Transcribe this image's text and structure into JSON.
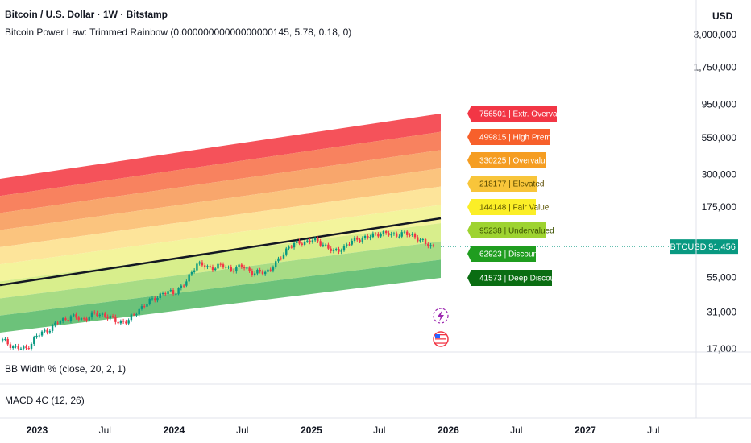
{
  "header": {
    "symbol_title": "Bitcoin / U.S. Dollar · 1W · Bitstamp",
    "indicator_title": "Bitcoin Power Law: Trimmed Rainbow (0.00000000000000000145, 5.78, 0.18, 0)",
    "currency": "USD"
  },
  "panes": {
    "bbw_label": "BB Width % (close, 20, 2, 1)",
    "macd_label": "MACD 4C (12, 26)"
  },
  "price_tag": {
    "symbol": "BTCUSD",
    "value": "91,456",
    "color": "#089981"
  },
  "icons": [
    "lightning-icon",
    "us-flag-icon"
  ],
  "chart_data": {
    "type": "line",
    "y_scale": "log",
    "y_ticks": [
      "3,000,000",
      "1,750,000",
      "950,000",
      "550,000",
      "300,000",
      "175,000",
      "55,000",
      "31,000",
      "17,000"
    ],
    "x_ticks": [
      {
        "label": "2023",
        "bold": true
      },
      {
        "label": "Jul",
        "bold": false
      },
      {
        "label": "2024",
        "bold": true
      },
      {
        "label": "Jul",
        "bold": false
      },
      {
        "label": "2025",
        "bold": true
      },
      {
        "label": "Jul",
        "bold": false
      },
      {
        "label": "2026",
        "bold": true
      },
      {
        "label": "Jul",
        "bold": false
      },
      {
        "label": "2027",
        "bold": true
      },
      {
        "label": "Jul",
        "bold": false
      }
    ],
    "bands": [
      {
        "value": "756501",
        "name": "Extr. Overvalued",
        "color": "#f23645",
        "text": "#ffffff"
      },
      {
        "value": "499815",
        "name": "High Premium",
        "color": "#f7602b",
        "text": "#ffffff"
      },
      {
        "value": "330225",
        "name": "Overvalued",
        "color": "#f59d22",
        "text": "#ffffff"
      },
      {
        "value": "218177",
        "name": "Elevated",
        "color": "#f8c53a",
        "text": "#5a4a00"
      },
      {
        "value": "144148",
        "name": "Fair Value",
        "color": "#fbee27",
        "text": "#5a5200"
      },
      {
        "value": "95238",
        "name": "Undervalued",
        "color": "#9ed330",
        "text": "#3c5200"
      },
      {
        "value": "62923",
        "name": "Discount",
        "color": "#1f9d1f",
        "text": "#ffffff"
      },
      {
        "value": "41573",
        "name": "Deep Discount",
        "color": "#0a6d12",
        "text": "#ffffff"
      }
    ],
    "band_fill_colors": [
      "#f5525a",
      "#f8825f",
      "#f8a66c",
      "#fbc47e",
      "#fde49a",
      "#f3f49c",
      "#d8ee8c",
      "#a8dc85",
      "#6cc27a"
    ],
    "fair_line_color": "#131722",
    "series": [
      {
        "x": [
          "2022-10-01",
          "2022-11-01",
          "2022-12-01",
          "2023-01-01",
          "2023-02-01",
          "2023-03-01",
          "2023-04-01",
          "2023-05-01",
          "2023-06-01",
          "2023-07-01",
          "2023-08-01",
          "2023-09-01",
          "2023-10-01",
          "2023-11-01",
          "2023-12-01",
          "2024-01-01",
          "2024-02-01",
          "2024-03-01",
          "2024-04-01",
          "2024-05-01",
          "2024-06-01",
          "2024-07-01",
          "2024-08-01",
          "2024-09-01",
          "2024-10-01",
          "2024-11-01",
          "2024-12-01",
          "2025-01-01",
          "2025-02-01",
          "2025-03-01",
          "2025-04-01",
          "2025-05-01",
          "2025-06-01",
          "2025-07-01",
          "2025-08-01",
          "2025-09-01",
          "2025-10-01",
          "2025-11-01",
          "2025-11-24"
        ],
        "values": [
          19500,
          17500,
          16800,
          21000,
          23500,
          26500,
          29000,
          27500,
          30000,
          29800,
          26500,
          26800,
          33000,
          37500,
          42500,
          43000,
          50000,
          70000,
          64000,
          67000,
          63000,
          66000,
          59000,
          60000,
          70000,
          92000,
          97000,
          102000,
          96000,
          83000,
          92000,
          104000,
          106000,
          115000,
          111000,
          113000,
          110000,
          95000,
          91456
        ]
      }
    ]
  }
}
